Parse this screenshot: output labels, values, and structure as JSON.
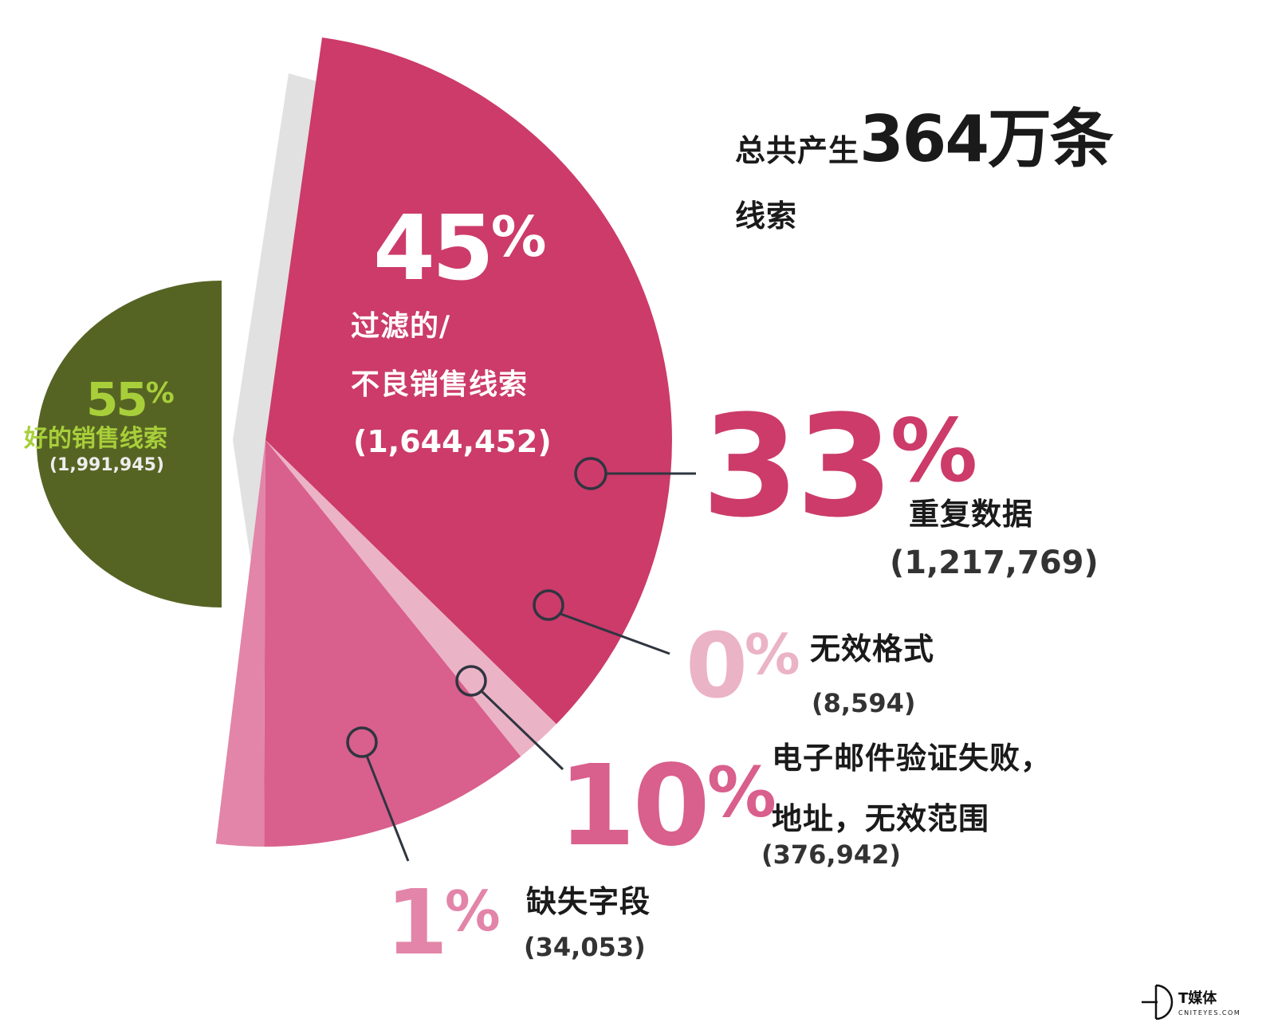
{
  "chart_data": {
    "type": "pie",
    "total": {
      "prefix": "总共产生",
      "number": "364万条",
      "suffix": "线索"
    },
    "good": {
      "percent": "55",
      "label": "好的销售线索",
      "count": "(1,991,945)",
      "value": 1991945
    },
    "bad": {
      "percent": "45",
      "label_line1": "过滤的/",
      "label_line2": "不良销售线索",
      "count": "(1,644,452)",
      "value": 1644452
    },
    "breakdown": [
      {
        "key": "duplicate",
        "percent": "33",
        "label": "重复数据",
        "count": "(1,217,769)",
        "value": 1217769,
        "color": "#cc3b6a"
      },
      {
        "key": "invalid_format",
        "percent": "0",
        "label": "无效格式",
        "count": "(8,594)",
        "value": 8594,
        "color": "#ebb3c6"
      },
      {
        "key": "email_invalid",
        "percent": "10",
        "label_line1": "电子邮件验证失败，",
        "label_line2": "地址，无效范围",
        "count": "(376,942)",
        "value": 376942,
        "color": "#d95f8c"
      },
      {
        "key": "missing_field",
        "percent": "1",
        "label": "缺失字段",
        "count": "(34,053)",
        "value": 34053,
        "color": "#e285a8"
      }
    ],
    "colors": {
      "good": "#566423",
      "good_text": "#a8cf3a",
      "bad_base": "#cc3b6a",
      "shadow": "#e1e1e1"
    }
  },
  "logo": {
    "name": "T媒体",
    "domain": "CNITEYES.COM"
  }
}
